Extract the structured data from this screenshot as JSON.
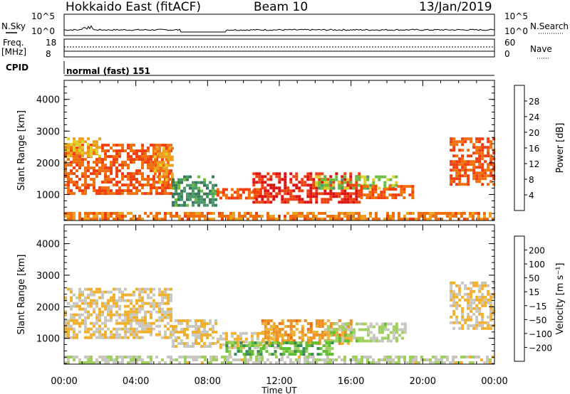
{
  "header": {
    "radar": "Hokkaido East (fitACF)",
    "beam": "Beam 10",
    "date": "13/Jan/2019"
  },
  "top_panels": {
    "nsky_label": "N.Sky",
    "nsky_ticks": [
      "10^5",
      "10^0"
    ],
    "nsearch_label": "N.Search",
    "nsearch_ticks": [
      "10^5",
      "10^0"
    ],
    "freq_label_1": "Freq.",
    "freq_label_2": "[MHz]",
    "freq_ticks": [
      "18",
      "8"
    ],
    "nave_label": "Nave",
    "nave_ticks": [
      "60",
      "0"
    ],
    "cpid_label": "CPID",
    "cpid_value": "normal (fast) 151"
  },
  "colors": {
    "power_scale": [
      "#1a1ae6",
      "#2e5aa8",
      "#3a7a5a",
      "#4a9a6a",
      "#6abf3a",
      "#e0d020",
      "#f0a020",
      "#f07010",
      "#f04010",
      "#e01010"
    ],
    "velocity_scale": [
      "#e01010",
      "#f04010",
      "#f07010",
      "#f09020",
      "#f0b030",
      "#c8c8c0",
      "#a0d060",
      "#60c030",
      "#3a8a5a",
      "#1a40c0"
    ]
  },
  "chart_data": [
    {
      "type": "heatmap",
      "name": "power",
      "ylabel": "Slant Range [km]",
      "yticks": [
        "1000",
        "2000",
        "3000",
        "4000"
      ],
      "ylim": [
        180,
        4600
      ],
      "x_ticks": [
        "00:00",
        "04:00",
        "08:00",
        "12:00",
        "16:00",
        "20:00",
        "00:00"
      ],
      "xlim_hours": [
        0,
        24
      ],
      "colorbar": {
        "label": "Power [dB]",
        "ticks": [
          "4",
          "8",
          "12",
          "16",
          "20",
          "24",
          "28"
        ],
        "range": [
          0,
          30
        ]
      },
      "regions": [
        {
          "t0": 0.0,
          "t1": 6.0,
          "r0": 1000,
          "r1": 2600,
          "value": 24
        },
        {
          "t0": 0.0,
          "t1": 2.0,
          "r0": 2200,
          "r1": 2800,
          "value": 18
        },
        {
          "t0": 5.0,
          "t1": 6.1,
          "r0": 1400,
          "r1": 2500,
          "value": 20
        },
        {
          "t0": 6.0,
          "t1": 8.5,
          "r0": 700,
          "r1": 1600,
          "value": 10
        },
        {
          "t0": 8.5,
          "t1": 11.0,
          "r0": 900,
          "r1": 1200,
          "value": 24
        },
        {
          "t0": 10.5,
          "t1": 16.5,
          "r0": 800,
          "r1": 1700,
          "value": 27
        },
        {
          "t0": 14.0,
          "t1": 18.5,
          "r0": 1200,
          "r1": 1600,
          "value": 14
        },
        {
          "t0": 16.5,
          "t1": 19.5,
          "r0": 900,
          "r1": 1300,
          "value": 24
        },
        {
          "t0": 21.5,
          "t1": 24.0,
          "r0": 1300,
          "r1": 2800,
          "value": 24
        },
        {
          "t0": 0.0,
          "t1": 24.0,
          "r0": 250,
          "r1": 450,
          "value": 22
        }
      ]
    },
    {
      "type": "heatmap",
      "name": "velocity",
      "ylabel": "Slant Range [km]",
      "yticks": [
        "1000",
        "2000",
        "3000",
        "4000"
      ],
      "ylim": [
        180,
        4600
      ],
      "x_ticks": [
        "00:00",
        "04:00",
        "08:00",
        "12:00",
        "16:00",
        "20:00",
        "00:00"
      ],
      "xlabel": "Time UT",
      "xlim_hours": [
        0,
        24
      ],
      "colorbar": {
        "label": "Velocity [m s⁻¹]",
        "ticks": [
          "200",
          "100",
          "50",
          "15",
          "−15",
          "−50",
          "−100",
          "−200"
        ],
        "range": [
          -250,
          250
        ]
      },
      "regions": [
        {
          "t0": 0.0,
          "t1": 6.0,
          "r0": 1000,
          "r1": 2600,
          "value": 0
        },
        {
          "t0": 6.0,
          "t1": 8.5,
          "r0": 700,
          "r1": 1600,
          "value": 0
        },
        {
          "t0": 8.5,
          "t1": 12.0,
          "r0": 700,
          "r1": 1200,
          "value": 0
        },
        {
          "t0": 11.0,
          "t1": 16.0,
          "r0": 800,
          "r1": 1600,
          "value": -60
        },
        {
          "t0": 14.5,
          "t1": 19.0,
          "r0": 900,
          "r1": 1500,
          "value": 60
        },
        {
          "t0": 9.0,
          "t1": 15.0,
          "r0": 500,
          "r1": 900,
          "value": 120
        },
        {
          "t0": 21.5,
          "t1": 24.0,
          "r0": 1300,
          "r1": 2800,
          "value": 0
        },
        {
          "t0": 0.0,
          "t1": 24.0,
          "r0": 250,
          "r1": 450,
          "value": 40
        }
      ]
    }
  ]
}
